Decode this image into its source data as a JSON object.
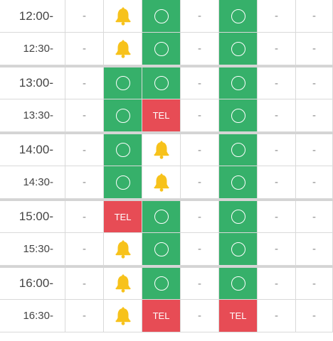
{
  "colors": {
    "available": "#36b06a",
    "tel": "#e74c55",
    "bell": "#f7c21b",
    "grid_line": "#d9d9d9"
  },
  "legend": {
    "available": "〇",
    "unavailable": "–",
    "tel": "TEL",
    "bell": "bell-icon"
  },
  "rows": [
    {
      "time": "12:00-",
      "cells": [
        "-",
        "bell",
        "o",
        "-",
        "o",
        "-",
        "-"
      ]
    },
    {
      "time": "12:30-",
      "cells": [
        "-",
        "bell",
        "o",
        "-",
        "o",
        "-",
        "-"
      ]
    },
    {
      "time": "13:00-",
      "cells": [
        "-",
        "o",
        "o",
        "-",
        "o",
        "-",
        "-"
      ]
    },
    {
      "time": "13:30-",
      "cells": [
        "-",
        "o",
        "TEL",
        "-",
        "o",
        "-",
        "-"
      ]
    },
    {
      "time": "14:00-",
      "cells": [
        "-",
        "o",
        "bell",
        "-",
        "o",
        "-",
        "-"
      ]
    },
    {
      "time": "14:30-",
      "cells": [
        "-",
        "o",
        "bell",
        "-",
        "o",
        "-",
        "-"
      ]
    },
    {
      "time": "15:00-",
      "cells": [
        "-",
        "TEL",
        "o",
        "-",
        "o",
        "-",
        "-"
      ]
    },
    {
      "time": "15:30-",
      "cells": [
        "-",
        "bell",
        "o",
        "-",
        "o",
        "-",
        "-"
      ]
    },
    {
      "time": "16:00-",
      "cells": [
        "-",
        "bell",
        "o",
        "-",
        "o",
        "-",
        "-"
      ]
    },
    {
      "time": "16:30-",
      "cells": [
        "-",
        "bell",
        "TEL",
        "-",
        "TEL",
        "-",
        "-"
      ]
    }
  ]
}
